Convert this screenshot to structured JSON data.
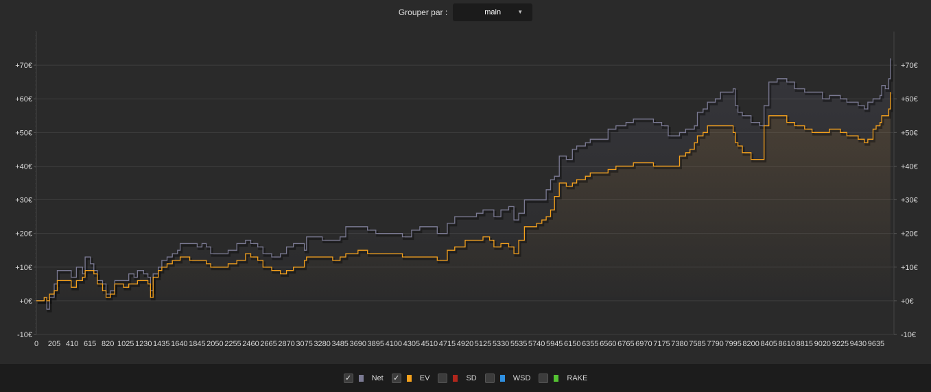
{
  "toolbar": {
    "group_label": "Grouper par :",
    "group_value": "main",
    "dropdown_icon": "chevron-down-icon"
  },
  "legend": [
    {
      "label": "Net",
      "checked": true,
      "color": "#7b7a93"
    },
    {
      "label": "EV",
      "checked": true,
      "color": "#f5a11c"
    },
    {
      "label": "SD",
      "checked": false,
      "color": "#b1261c"
    },
    {
      "label": "WSD",
      "checked": false,
      "color": "#2f8fe0"
    },
    {
      "label": "RAKE",
      "checked": false,
      "color": "#54c232"
    }
  ],
  "chart_data": {
    "type": "line",
    "ylim": [
      -10,
      80
    ],
    "xlim": [
      0,
      9840
    ],
    "y_ticks": [
      -10,
      0,
      10,
      20,
      30,
      40,
      50,
      60,
      70
    ],
    "y_tick_labels": [
      "-10€",
      "+0€",
      "+10€",
      "+20€",
      "+30€",
      "+40€",
      "+50€",
      "+60€",
      "+70€"
    ],
    "x_ticks": [
      0,
      205,
      410,
      615,
      820,
      1025,
      1230,
      1435,
      1640,
      1845,
      2050,
      2255,
      2460,
      2665,
      2870,
      3075,
      3280,
      3485,
      3690,
      3895,
      4100,
      4305,
      4510,
      4715,
      4920,
      5125,
      5330,
      5535,
      5740,
      5945,
      6150,
      6355,
      6560,
      6765,
      6970,
      7175,
      7380,
      7585,
      7790,
      7995,
      8200,
      8405,
      8610,
      8815,
      9020,
      9225,
      9430,
      9635
    ],
    "grid": true,
    "series": [
      {
        "name": "Net",
        "color": "#7b7a93",
        "points": [
          [
            0,
            0
          ],
          [
            90,
            1
          ],
          [
            120,
            -2.5
          ],
          [
            150,
            1
          ],
          [
            205,
            5
          ],
          [
            240,
            9
          ],
          [
            330,
            9
          ],
          [
            400,
            7
          ],
          [
            460,
            10
          ],
          [
            530,
            8
          ],
          [
            560,
            13
          ],
          [
            620,
            11
          ],
          [
            660,
            9
          ],
          [
            700,
            6
          ],
          [
            760,
            5
          ],
          [
            800,
            2
          ],
          [
            850,
            3
          ],
          [
            900,
            6
          ],
          [
            1000,
            6
          ],
          [
            1060,
            8
          ],
          [
            1120,
            7
          ],
          [
            1160,
            9
          ],
          [
            1230,
            8
          ],
          [
            1280,
            7
          ],
          [
            1310,
            3
          ],
          [
            1340,
            8
          ],
          [
            1400,
            10
          ],
          [
            1440,
            12
          ],
          [
            1500,
            13
          ],
          [
            1560,
            14
          ],
          [
            1620,
            15
          ],
          [
            1650,
            17
          ],
          [
            1760,
            17
          ],
          [
            1845,
            16
          ],
          [
            1900,
            17
          ],
          [
            1950,
            16
          ],
          [
            2000,
            14
          ],
          [
            2100,
            14
          ],
          [
            2200,
            15
          ],
          [
            2300,
            17
          ],
          [
            2400,
            18
          ],
          [
            2460,
            17
          ],
          [
            2540,
            16
          ],
          [
            2600,
            14
          ],
          [
            2700,
            13
          ],
          [
            2800,
            14
          ],
          [
            2870,
            16
          ],
          [
            2950,
            17
          ],
          [
            3075,
            15
          ],
          [
            3100,
            19
          ],
          [
            3200,
            19
          ],
          [
            3280,
            18
          ],
          [
            3400,
            18
          ],
          [
            3485,
            19
          ],
          [
            3550,
            22
          ],
          [
            3690,
            22
          ],
          [
            3800,
            21
          ],
          [
            3895,
            20
          ],
          [
            4000,
            20
          ],
          [
            4100,
            20
          ],
          [
            4200,
            19
          ],
          [
            4305,
            21
          ],
          [
            4400,
            22
          ],
          [
            4510,
            22
          ],
          [
            4600,
            20
          ],
          [
            4715,
            23
          ],
          [
            4800,
            25
          ],
          [
            4920,
            25
          ],
          [
            5050,
            26
          ],
          [
            5125,
            27
          ],
          [
            5200,
            27
          ],
          [
            5250,
            25
          ],
          [
            5330,
            27
          ],
          [
            5420,
            28
          ],
          [
            5480,
            24
          ],
          [
            5535,
            26
          ],
          [
            5600,
            30
          ],
          [
            5740,
            30
          ],
          [
            5800,
            30
          ],
          [
            5850,
            33
          ],
          [
            5900,
            36
          ],
          [
            5945,
            37
          ],
          [
            6000,
            43
          ],
          [
            6080,
            42
          ],
          [
            6150,
            45
          ],
          [
            6200,
            46
          ],
          [
            6300,
            47
          ],
          [
            6355,
            48
          ],
          [
            6450,
            48
          ],
          [
            6560,
            51
          ],
          [
            6650,
            52
          ],
          [
            6765,
            53
          ],
          [
            6850,
            54
          ],
          [
            6970,
            54
          ],
          [
            7080,
            53
          ],
          [
            7175,
            52
          ],
          [
            7250,
            49
          ],
          [
            7380,
            50
          ],
          [
            7450,
            51
          ],
          [
            7500,
            51
          ],
          [
            7550,
            52
          ],
          [
            7585,
            56
          ],
          [
            7650,
            57
          ],
          [
            7700,
            59
          ],
          [
            7790,
            60
          ],
          [
            7850,
            62
          ],
          [
            7995,
            63
          ],
          [
            8020,
            58
          ],
          [
            8050,
            56
          ],
          [
            8100,
            55
          ],
          [
            8200,
            53
          ],
          [
            8300,
            52
          ],
          [
            8350,
            58
          ],
          [
            8405,
            65
          ],
          [
            8500,
            66
          ],
          [
            8610,
            65
          ],
          [
            8700,
            63
          ],
          [
            8815,
            62
          ],
          [
            8900,
            62
          ],
          [
            9020,
            60
          ],
          [
            9100,
            61
          ],
          [
            9225,
            60
          ],
          [
            9300,
            59
          ],
          [
            9430,
            58
          ],
          [
            9500,
            57
          ],
          [
            9540,
            59
          ],
          [
            9600,
            60
          ],
          [
            9635,
            60
          ],
          [
            9680,
            61
          ],
          [
            9700,
            64
          ],
          [
            9740,
            63
          ],
          [
            9780,
            66
          ],
          [
            9800,
            72
          ]
        ]
      },
      {
        "name": "EV",
        "color": "#f5a11c",
        "points": [
          [
            0,
            0
          ],
          [
            90,
            1
          ],
          [
            120,
            0
          ],
          [
            150,
            2
          ],
          [
            205,
            3
          ],
          [
            240,
            6
          ],
          [
            330,
            6
          ],
          [
            400,
            4
          ],
          [
            460,
            6
          ],
          [
            530,
            7
          ],
          [
            560,
            9
          ],
          [
            620,
            9
          ],
          [
            660,
            8
          ],
          [
            700,
            5
          ],
          [
            760,
            3
          ],
          [
            800,
            1
          ],
          [
            850,
            2
          ],
          [
            900,
            5
          ],
          [
            1000,
            4
          ],
          [
            1060,
            5
          ],
          [
            1120,
            5
          ],
          [
            1160,
            6
          ],
          [
            1230,
            6
          ],
          [
            1280,
            5
          ],
          [
            1310,
            1
          ],
          [
            1340,
            7
          ],
          [
            1400,
            9
          ],
          [
            1440,
            10
          ],
          [
            1500,
            11
          ],
          [
            1560,
            12
          ],
          [
            1620,
            12
          ],
          [
            1650,
            13
          ],
          [
            1760,
            12
          ],
          [
            1845,
            12
          ],
          [
            1900,
            12
          ],
          [
            1950,
            11
          ],
          [
            2000,
            10
          ],
          [
            2100,
            10
          ],
          [
            2200,
            11
          ],
          [
            2300,
            12
          ],
          [
            2400,
            14
          ],
          [
            2460,
            13
          ],
          [
            2540,
            12
          ],
          [
            2600,
            10
          ],
          [
            2700,
            9
          ],
          [
            2800,
            8
          ],
          [
            2870,
            9
          ],
          [
            2950,
            10
          ],
          [
            3075,
            12
          ],
          [
            3100,
            13
          ],
          [
            3200,
            13
          ],
          [
            3280,
            13
          ],
          [
            3400,
            12
          ],
          [
            3485,
            13
          ],
          [
            3550,
            14
          ],
          [
            3690,
            15
          ],
          [
            3800,
            14
          ],
          [
            3895,
            14
          ],
          [
            4000,
            14
          ],
          [
            4100,
            14
          ],
          [
            4200,
            13
          ],
          [
            4305,
            13
          ],
          [
            4400,
            13
          ],
          [
            4510,
            13
          ],
          [
            4600,
            12
          ],
          [
            4715,
            15
          ],
          [
            4800,
            16
          ],
          [
            4920,
            18
          ],
          [
            5050,
            18
          ],
          [
            5125,
            19
          ],
          [
            5200,
            18
          ],
          [
            5250,
            16
          ],
          [
            5330,
            17
          ],
          [
            5420,
            16
          ],
          [
            5480,
            14
          ],
          [
            5535,
            18
          ],
          [
            5600,
            22
          ],
          [
            5740,
            23
          ],
          [
            5800,
            24
          ],
          [
            5850,
            25
          ],
          [
            5900,
            27
          ],
          [
            5945,
            31
          ],
          [
            6000,
            35
          ],
          [
            6080,
            34
          ],
          [
            6150,
            35
          ],
          [
            6200,
            36
          ],
          [
            6300,
            37
          ],
          [
            6355,
            38
          ],
          [
            6450,
            38
          ],
          [
            6560,
            39
          ],
          [
            6650,
            40
          ],
          [
            6765,
            40
          ],
          [
            6850,
            41
          ],
          [
            6970,
            41
          ],
          [
            7080,
            40
          ],
          [
            7175,
            40
          ],
          [
            7250,
            40
          ],
          [
            7380,
            43
          ],
          [
            7450,
            44
          ],
          [
            7500,
            45
          ],
          [
            7550,
            47
          ],
          [
            7585,
            49
          ],
          [
            7650,
            50
          ],
          [
            7700,
            52
          ],
          [
            7790,
            52
          ],
          [
            7850,
            52
          ],
          [
            7995,
            50
          ],
          [
            8020,
            47
          ],
          [
            8050,
            46
          ],
          [
            8100,
            44
          ],
          [
            8200,
            42
          ],
          [
            8300,
            42
          ],
          [
            8350,
            52
          ],
          [
            8405,
            55
          ],
          [
            8500,
            55
          ],
          [
            8610,
            53
          ],
          [
            8700,
            52
          ],
          [
            8815,
            51
          ],
          [
            8900,
            50
          ],
          [
            9020,
            50
          ],
          [
            9100,
            51
          ],
          [
            9225,
            50
          ],
          [
            9300,
            49
          ],
          [
            9430,
            48
          ],
          [
            9500,
            47
          ],
          [
            9540,
            48
          ],
          [
            9600,
            51
          ],
          [
            9635,
            52
          ],
          [
            9680,
            53
          ],
          [
            9700,
            55
          ],
          [
            9740,
            55
          ],
          [
            9780,
            57
          ],
          [
            9800,
            62
          ]
        ]
      }
    ]
  }
}
